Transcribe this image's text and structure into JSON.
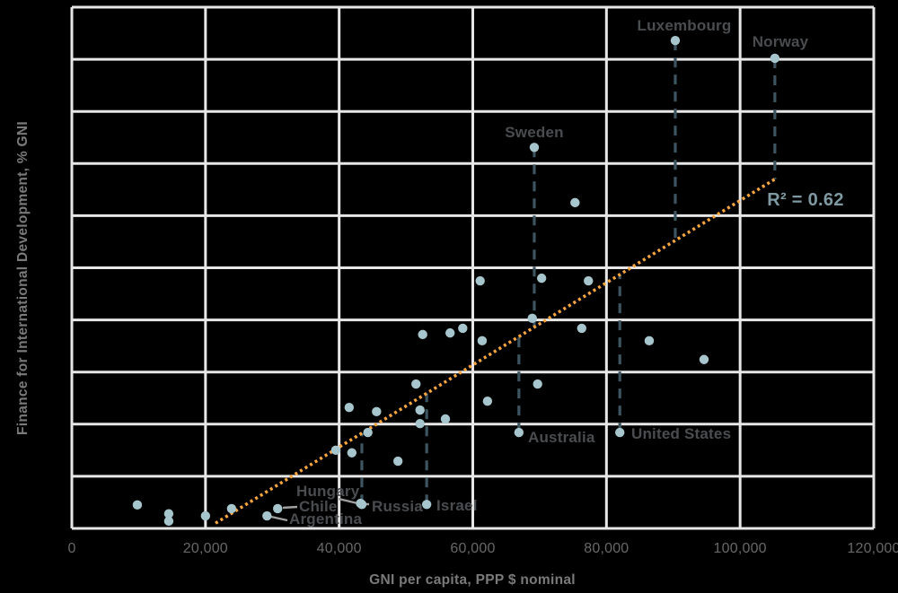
{
  "colors": {
    "background": "#000000",
    "grid": "#e7e7e7",
    "point": "#a7c5cc",
    "trendline": "#f9a640",
    "residual_line": "#3d5560",
    "country_label": "#4a4d50",
    "tick_label": "#686868",
    "axis_title": "#7a7a7a",
    "r_squared": "#7f99a2",
    "callout_line": "#a0a0a0"
  },
  "chart_data": {
    "type": "scatter",
    "title": "",
    "xlabel": "GNI per capita, PPP $ nominal",
    "ylabel": "Finance for International Development, % GNI",
    "xlim": [
      0,
      120000
    ],
    "ylim": [
      0,
      1.0
    ],
    "grid": true,
    "y_gridline_step": 0.1,
    "xticks": [
      0,
      20000,
      40000,
      60000,
      80000,
      100000,
      120000
    ],
    "x_tick_labels": [
      "0",
      "20,000",
      "40,000",
      "60,000",
      "80,000",
      "100,000",
      "120,000"
    ],
    "y_tick_labels": [],
    "r_squared_label": "R² = 0.62",
    "trendline": {
      "style": "dotted",
      "x1": 21500,
      "y1": 0.01,
      "x2": 105200,
      "y2": 0.67
    },
    "labeled_points": [
      {
        "name": "Luxembourg",
        "x": 90300,
        "y": 0.936,
        "residual": true
      },
      {
        "name": "Norway",
        "x": 105200,
        "y": 0.902,
        "residual": true
      },
      {
        "name": "Sweden",
        "x": 69200,
        "y": 0.731,
        "residual": true
      },
      {
        "name": "Australia",
        "x": 66900,
        "y": 0.184,
        "residual": true
      },
      {
        "name": "United States",
        "x": 82000,
        "y": 0.184,
        "residual": true
      },
      {
        "name": "Israel",
        "x": 53100,
        "y": 0.046,
        "residual": true
      },
      {
        "name": "Russia",
        "x": 43400,
        "y": 0.046,
        "residual": true
      },
      {
        "name": "Hungary",
        "x": 43200,
        "y": 0.048,
        "residual": false
      },
      {
        "name": "Chile",
        "x": 30800,
        "y": 0.038,
        "residual": false
      },
      {
        "name": "Argentina",
        "x": 29200,
        "y": 0.024,
        "residual": false
      }
    ],
    "points": [
      [
        9800,
        0.045
      ],
      [
        14500,
        0.028
      ],
      [
        14500,
        0.014
      ],
      [
        20000,
        0.024
      ],
      [
        23900,
        0.038
      ],
      [
        39500,
        0.15
      ],
      [
        41900,
        0.145
      ],
      [
        41500,
        0.232
      ],
      [
        45600,
        0.224
      ],
      [
        44300,
        0.184
      ],
      [
        48800,
        0.129
      ],
      [
        51500,
        0.277
      ],
      [
        52100,
        0.227
      ],
      [
        52100,
        0.201
      ],
      [
        52500,
        0.372
      ],
      [
        55900,
        0.21
      ],
      [
        56600,
        0.375
      ],
      [
        58500,
        0.384
      ],
      [
        61400,
        0.36
      ],
      [
        62200,
        0.244
      ],
      [
        61100,
        0.475
      ],
      [
        68900,
        0.403
      ],
      [
        69700,
        0.277
      ],
      [
        70300,
        0.48
      ],
      [
        75300,
        0.625
      ],
      [
        76300,
        0.384
      ],
      [
        77300,
        0.475
      ],
      [
        86400,
        0.36
      ],
      [
        94600,
        0.324
      ]
    ]
  }
}
